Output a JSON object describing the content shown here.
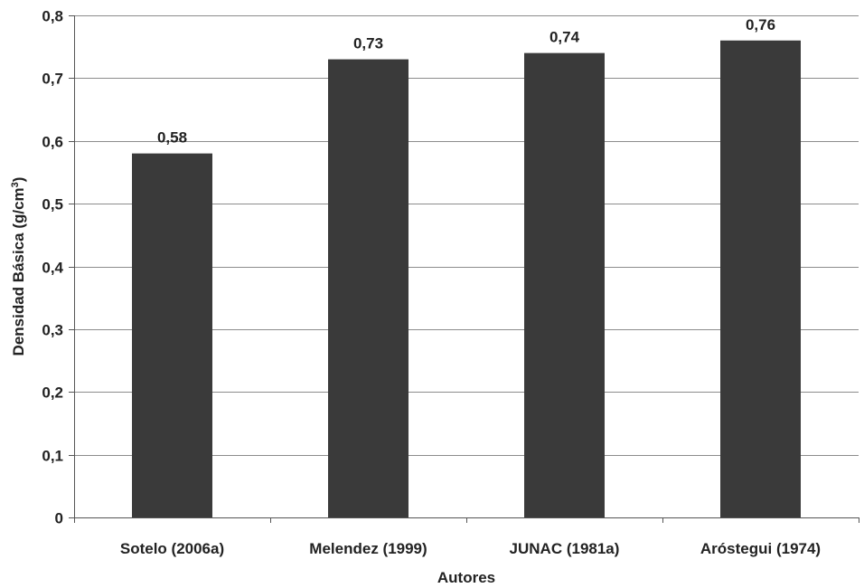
{
  "chart_data": {
    "type": "bar",
    "categories": [
      "Sotelo (2006a)",
      "Melendez (1999)",
      "JUNAC (1981a)",
      "Aróstegui (1974)"
    ],
    "values": [
      0.58,
      0.73,
      0.74,
      0.76
    ],
    "data_labels": [
      "0,58",
      "0,73",
      "0,74",
      "0,76"
    ],
    "xlabel": "Autores",
    "ylabel": {
      "text": "Densidad Básica (g/cm",
      "superscript": "3",
      "suffix": ")"
    },
    "ylim": [
      0,
      0.8
    ],
    "yticks": [
      0,
      0.1,
      0.2,
      0.3,
      0.4,
      0.5,
      0.6,
      0.7,
      0.8
    ],
    "ytick_labels": [
      "0",
      "0,1",
      "0,2",
      "0,3",
      "0,4",
      "0,5",
      "0,6",
      "0,7",
      "0,8"
    ],
    "grid": true,
    "bar_color": "#3a3a3a",
    "grid_color": "#8c8c8c",
    "axis_color": "#555555"
  }
}
